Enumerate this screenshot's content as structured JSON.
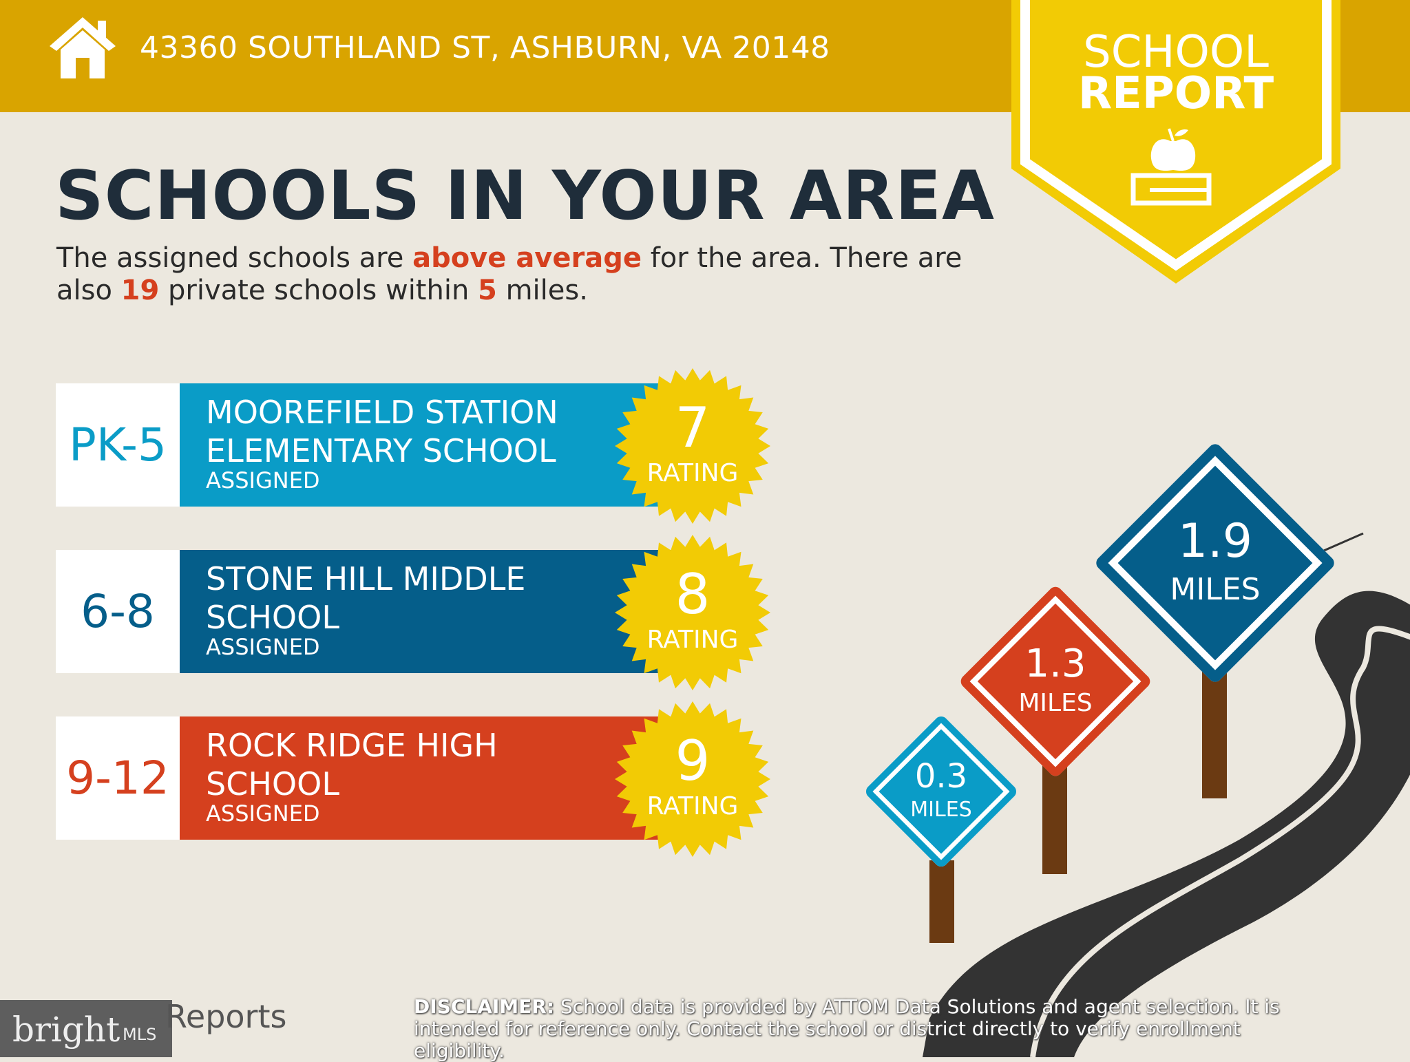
{
  "header": {
    "address": "43360 SOUTHLAND ST, ASHBURN, VA 20148",
    "icon": "house-icon",
    "color": "#D9A400"
  },
  "badge": {
    "line1": "SCHOOL",
    "line2": "REPORT",
    "icon": "apple-on-book-icon",
    "color": "#F2CB05"
  },
  "main": {
    "title": "SCHOOLS IN YOUR AREA",
    "subtitle": {
      "p1": "The assigned schools are ",
      "h1": "above average",
      "p2": " for the area. There are also ",
      "h2": "19",
      "p3": " private schools within ",
      "h3": "5",
      "p4": " miles."
    },
    "schools": [
      {
        "grades": "PK-5",
        "name": "MOOREFIELD STATION ELEMENTARY SCHOOL",
        "status": "ASSIGNED",
        "rating": "7",
        "rating_label": "RATING",
        "color": "#0A9CC7"
      },
      {
        "grades": "6-8",
        "name": "STONE HILL MIDDLE SCHOOL",
        "status": "ASSIGNED",
        "rating": "8",
        "rating_label": "RATING",
        "color": "#055E8A"
      },
      {
        "grades": "9-12",
        "name": "ROCK RIDGE HIGH SCHOOL",
        "status": "ASSIGNED",
        "rating": "9",
        "rating_label": "RATING",
        "color": "#D5401E"
      }
    ]
  },
  "signs": [
    {
      "value": "0.3",
      "unit": "MILES",
      "color": "#0A9CC7"
    },
    {
      "value": "1.3",
      "unit": "MILES",
      "color": "#D5401E"
    },
    {
      "value": "1.9",
      "unit": "MILES",
      "color": "#055E8A"
    }
  ],
  "footer": {
    "logo": "bright MLS",
    "reports": "Reports",
    "disclaimer_label": "DISCLAIMER:",
    "disclaimer": " School data is provided by ATTOM Data Solutions and agent selection. It is intended for reference only. Contact the school or district directly to verify enrollment eligibility."
  }
}
